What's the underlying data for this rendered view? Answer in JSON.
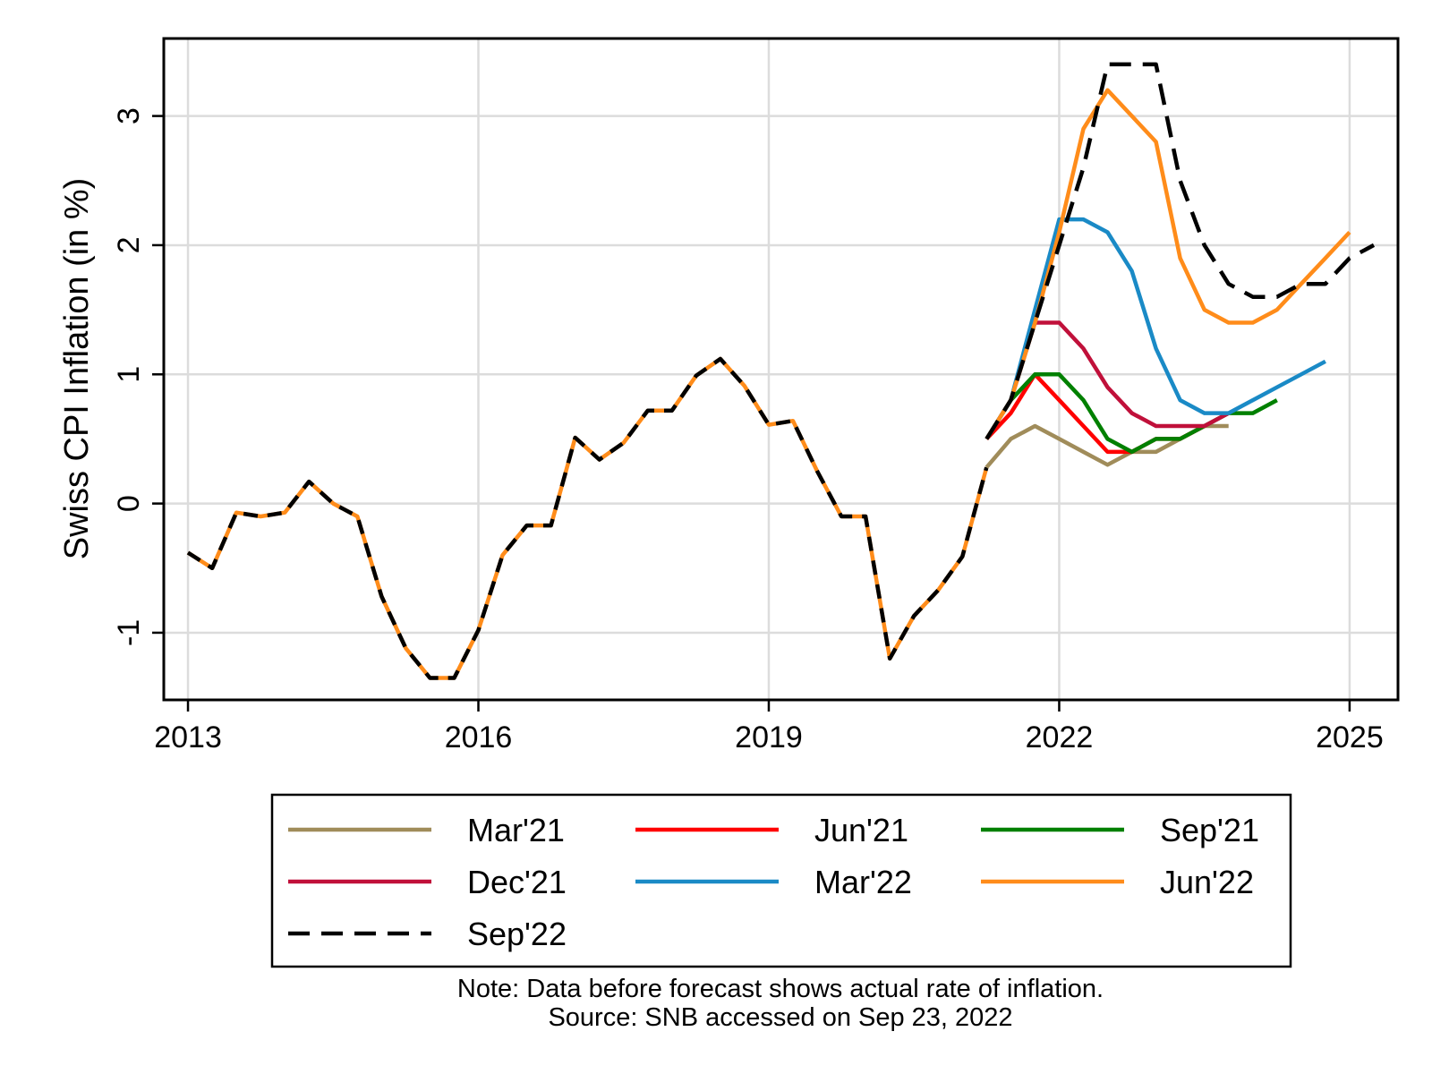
{
  "chart_data": {
    "type": "line",
    "title": "",
    "xlabel": "",
    "ylabel": "Swiss CPI Inflation (in %)",
    "xlim": [
      2012.75,
      2025.5
    ],
    "ylim": [
      -1.52,
      3.6
    ],
    "xticks": [
      2013,
      2016,
      2019,
      2022,
      2025
    ],
    "yticks": [
      -1,
      0,
      1,
      2,
      3
    ],
    "grid": true,
    "legend_position": "bottom",
    "legend_columns": 3,
    "note": "Note: Data before forecast shows actual rate of inflation.",
    "source": "Source: SNB accessed on Sep 23, 2022",
    "actual": {
      "x": [
        2013.0,
        2013.25,
        2013.5,
        2013.75,
        2014.0,
        2014.25,
        2014.5,
        2014.75,
        2015.0,
        2015.25,
        2015.5,
        2015.75,
        2016.0,
        2016.25,
        2016.5,
        2016.75,
        2017.0,
        2017.25,
        2017.5,
        2017.75,
        2018.0,
        2018.25,
        2018.5,
        2018.75,
        2019.0,
        2019.25,
        2019.5,
        2019.75,
        2020.0,
        2020.25,
        2020.5,
        2020.75,
        2021.0,
        2021.25
      ],
      "y": [
        -0.38,
        -0.5,
        -0.07,
        -0.1,
        -0.07,
        0.17,
        0.0,
        -0.1,
        -0.72,
        -1.12,
        -1.35,
        -1.35,
        -0.98,
        -0.4,
        -0.17,
        -0.17,
        0.51,
        0.34,
        0.47,
        0.72,
        0.72,
        0.99,
        1.12,
        0.91,
        0.61,
        0.64,
        0.25,
        -0.1,
        -0.1,
        -1.2,
        -0.87,
        -0.67,
        -0.41,
        0.28
      ]
    },
    "series": [
      {
        "name": "Mar'21",
        "color": "#a08c5a",
        "dash": false,
        "x": [
          2021.25,
          2021.5,
          2021.75,
          2022.0,
          2022.25,
          2022.5,
          2022.75,
          2023.0,
          2023.25,
          2023.5,
          2023.75
        ],
        "y": [
          0.28,
          0.5,
          0.6,
          0.5,
          0.4,
          0.3,
          0.4,
          0.4,
          0.5,
          0.6,
          0.6
        ]
      },
      {
        "name": "Jun'21",
        "color": "#ff0000",
        "dash": false,
        "x": [
          2021.25,
          2021.5,
          2021.75,
          2022.0,
          2022.25,
          2022.5,
          2022.75,
          2023.0,
          2023.25,
          2023.5
        ],
        "y": [
          0.5,
          0.7,
          1.0,
          0.8,
          0.6,
          0.4,
          0.4,
          0.5,
          0.5,
          0.6
        ]
      },
      {
        "name": "Sep'21",
        "color": "#008000",
        "dash": false,
        "x": [
          2021.25,
          2021.5,
          2021.75,
          2022.0,
          2022.25,
          2022.5,
          2022.75,
          2023.0,
          2023.25,
          2023.5,
          2023.75,
          2024.0,
          2024.25
        ],
        "y": [
          0.5,
          0.8,
          1.0,
          1.0,
          0.8,
          0.5,
          0.4,
          0.5,
          0.5,
          0.6,
          0.7,
          0.7,
          0.8
        ]
      },
      {
        "name": "Dec'21",
        "color": "#c0103a",
        "dash": false,
        "x": [
          2021.25,
          2021.5,
          2021.75,
          2022.0,
          2022.25,
          2022.5,
          2022.75,
          2023.0,
          2023.25,
          2023.5,
          2023.75
        ],
        "y": [
          0.5,
          0.8,
          1.4,
          1.4,
          1.2,
          0.9,
          0.7,
          0.6,
          0.6,
          0.6,
          0.7
        ]
      },
      {
        "name": "Mar'22",
        "color": "#1a8ac6",
        "dash": false,
        "x": [
          2021.25,
          2021.5,
          2021.75,
          2022.0,
          2022.25,
          2022.5,
          2022.75,
          2023.0,
          2023.25,
          2023.5,
          2023.75,
          2024.0,
          2024.25,
          2024.5,
          2024.75
        ],
        "y": [
          0.5,
          0.8,
          1.5,
          2.2,
          2.2,
          2.1,
          1.8,
          1.2,
          0.8,
          0.7,
          0.7,
          0.8,
          0.9,
          1.0,
          1.1
        ]
      },
      {
        "name": "Jun'22",
        "color": "#ff8c1a",
        "dash": false,
        "x": [
          2021.25,
          2021.5,
          2021.75,
          2022.0,
          2022.25,
          2022.5,
          2022.75,
          2023.0,
          2023.25,
          2023.5,
          2023.75,
          2024.0,
          2024.25,
          2024.5,
          2024.75,
          2025.0
        ],
        "y": [
          0.5,
          0.8,
          1.4,
          2.1,
          2.9,
          3.2,
          3.0,
          2.8,
          1.9,
          1.5,
          1.4,
          1.4,
          1.5,
          1.7,
          1.9,
          2.1
        ]
      },
      {
        "name": "Sep'22",
        "color": "#000000",
        "dash": true,
        "x": [
          2021.25,
          2021.5,
          2021.75,
          2022.0,
          2022.25,
          2022.5,
          2022.75,
          2023.0,
          2023.25,
          2023.5,
          2023.75,
          2024.0,
          2024.25,
          2024.5,
          2024.75,
          2025.0,
          2025.25
        ],
        "y": [
          0.5,
          0.8,
          1.4,
          2.0,
          2.6,
          3.4,
          3.4,
          3.4,
          2.5,
          2.0,
          1.7,
          1.6,
          1.6,
          1.7,
          1.7,
          1.9,
          2.0
        ]
      }
    ]
  }
}
